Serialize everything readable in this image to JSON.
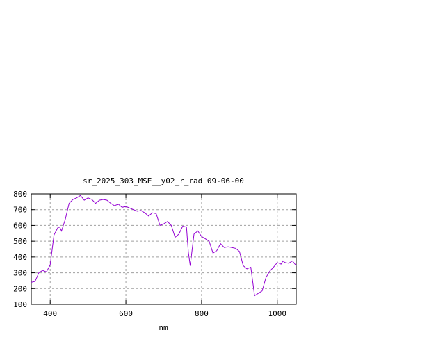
{
  "chart_data": {
    "type": "line",
    "title": "sr_2025_303_MSE__y02_r_rad 09-06-00",
    "xlabel": "nm",
    "ylabel": "",
    "xlim": [
      350,
      1050
    ],
    "ylim": [
      100,
      800
    ],
    "xticks": [
      400,
      600,
      800,
      1000
    ],
    "yticks": [
      100,
      200,
      300,
      400,
      500,
      600,
      700,
      800
    ],
    "grid": true,
    "line_color": "#9400d3",
    "series": [
      {
        "x": [
          350,
          360,
          370,
          380,
          390,
          400,
          410,
          420,
          425,
          430,
          440,
          450,
          460,
          470,
          480,
          490,
          500,
          510,
          520,
          530,
          540,
          550,
          560,
          570,
          580,
          590,
          600,
          610,
          620,
          630,
          640,
          650,
          660,
          670,
          680,
          690,
          700,
          710,
          720,
          730,
          740,
          750,
          760,
          765,
          770,
          780,
          790,
          800,
          810,
          820,
          830,
          840,
          850,
          860,
          870,
          880,
          890,
          900,
          910,
          920,
          930,
          940,
          950,
          960,
          970,
          980,
          990,
          1000,
          1010,
          1015,
          1020,
          1030,
          1040,
          1050
        ],
        "y": [
          240,
          245,
          300,
          315,
          305,
          350,
          540,
          585,
          590,
          565,
          640,
          740,
          765,
          775,
          790,
          760,
          775,
          765,
          740,
          760,
          765,
          760,
          740,
          725,
          735,
          715,
          720,
          710,
          700,
          690,
          695,
          680,
          660,
          680,
          675,
          600,
          610,
          625,
          600,
          525,
          545,
          595,
          590,
          430,
          345,
          545,
          565,
          530,
          515,
          500,
          425,
          440,
          485,
          460,
          465,
          460,
          455,
          435,
          345,
          325,
          335,
          155,
          170,
          185,
          270,
          310,
          335,
          365,
          355,
          375,
          365,
          360,
          375,
          345
        ]
      }
    ]
  }
}
